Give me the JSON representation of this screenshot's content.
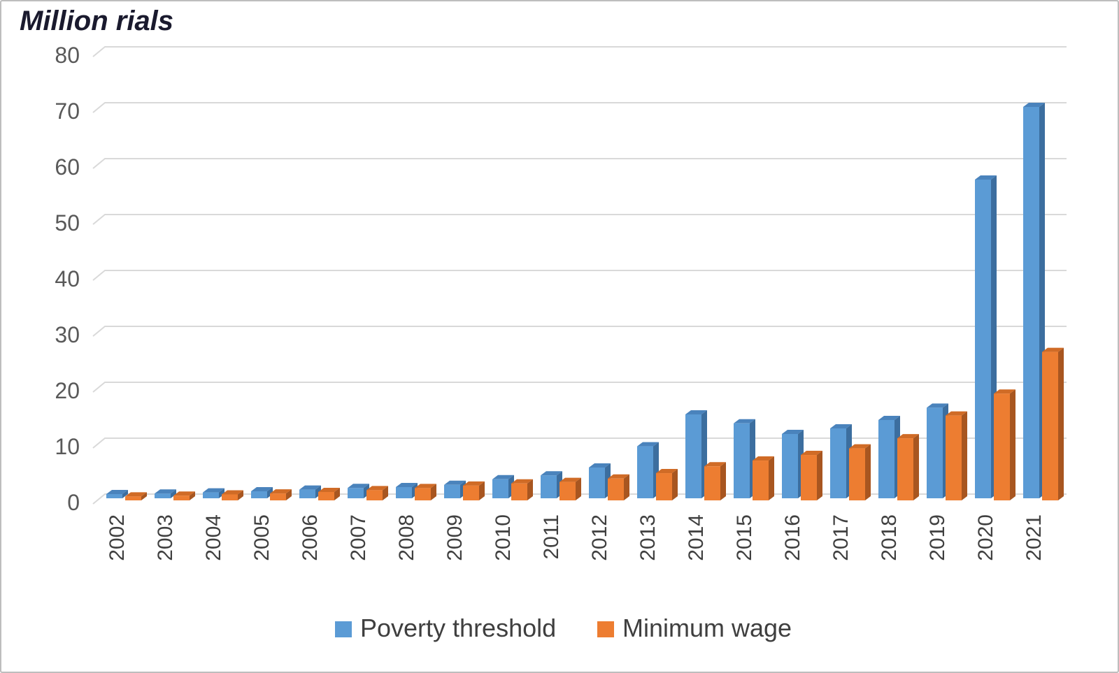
{
  "title": "Million rials",
  "chart_data": {
    "type": "bar",
    "style": "3d-clustered-column",
    "title": "Million rials",
    "categories": [
      "2002",
      "2003",
      "2004",
      "2005",
      "2006",
      "2007",
      "2008",
      "2009",
      "2010",
      "2011",
      "2012",
      "2013",
      "2014",
      "2015",
      "2016",
      "2017",
      "2018",
      "2019",
      "2020",
      "2021"
    ],
    "series": [
      {
        "name": "Poverty threshold",
        "color": "#5B9BD5",
        "color_side": "#3C6E9F",
        "color_top": "#4A83BC",
        "values": [
          0.75,
          0.85,
          1.05,
          1.25,
          1.55,
          1.85,
          2.0,
          2.4,
          3.4,
          4.1,
          5.5,
          9.3,
          15.0,
          13.4,
          11.5,
          12.5,
          14.0,
          16.2,
          57.0,
          70.0
        ]
      },
      {
        "name": "Minimum wage",
        "color": "#ED7D31",
        "color_side": "#A85620",
        "color_top": "#D06B26",
        "values": [
          0.7,
          0.85,
          1.07,
          1.23,
          1.5,
          1.83,
          2.2,
          2.64,
          3.03,
          3.3,
          3.9,
          4.87,
          6.09,
          7.12,
          8.12,
          9.3,
          11.11,
          15.17,
          19.1,
          26.55
        ]
      }
    ],
    "ylim": [
      0,
      80
    ],
    "ytick_step": 10,
    "yticks": [
      "0",
      "10",
      "20",
      "30",
      "40",
      "50",
      "60",
      "70",
      "80"
    ],
    "xlabel": "",
    "ylabel": "",
    "grid": true,
    "legend_position": "bottom",
    "colors": {
      "gridline": "#D9D9D9",
      "ytick_label": "#595959",
      "xtick_label": "#404040",
      "legend_text": "#3F3F3F",
      "title": "#1A1A2E",
      "background": "#FFFFFF",
      "border": "#BDBDBD"
    }
  }
}
